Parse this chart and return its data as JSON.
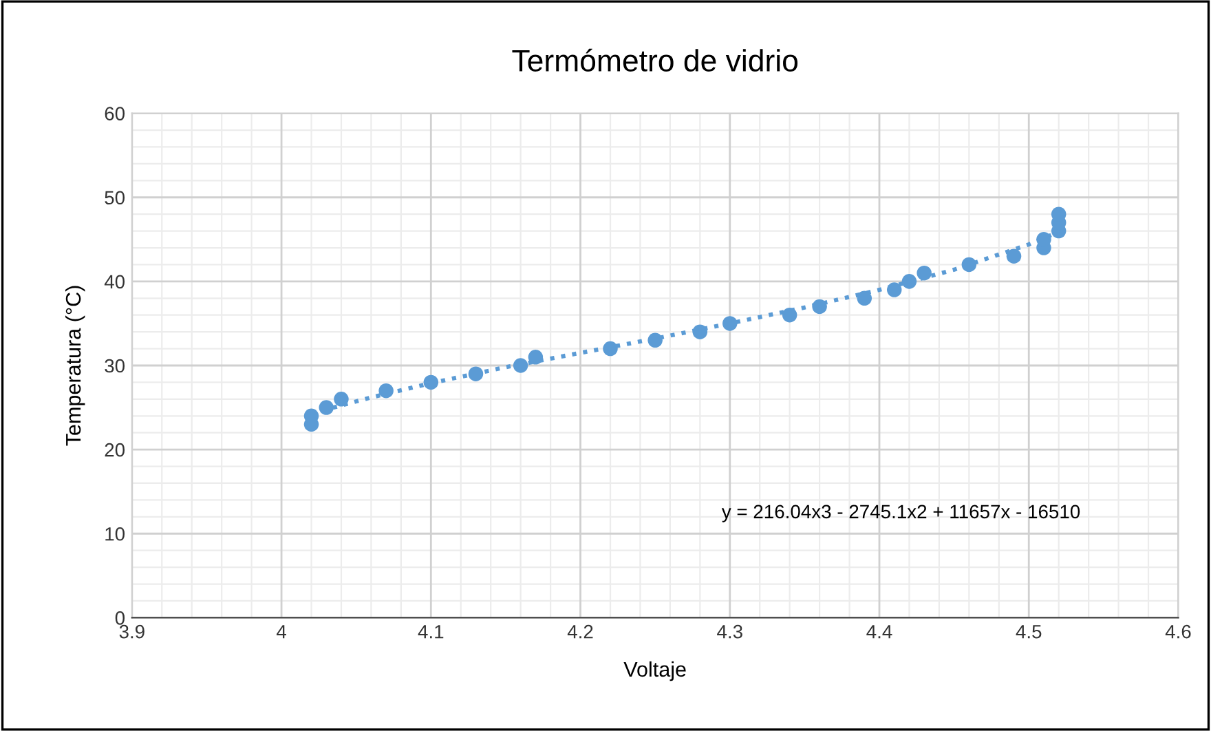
{
  "chart_data": {
    "type": "scatter",
    "title": "Termómetro de vidrio",
    "xlabel": "Voltaje",
    "ylabel": "Temperatura (°C)",
    "xlim": [
      3.9,
      4.6
    ],
    "xticks": [
      3.9,
      4,
      4.1,
      4.2,
      4.3,
      4.4,
      4.5,
      4.6
    ],
    "ylim": [
      0,
      60
    ],
    "yticks": [
      0,
      10,
      20,
      30,
      40,
      50,
      60
    ],
    "grid": true,
    "annotations": [
      "y = 216.04x3 - 2745.1x2 + 11657x - 16510"
    ],
    "series": [
      {
        "marker": "circle",
        "color": "#5b9bd5",
        "x": [
          4.02,
          4.02,
          4.03,
          4.04,
          4.07,
          4.1,
          4.13,
          4.16,
          4.17,
          4.22,
          4.25,
          4.28,
          4.3,
          4.34,
          4.36,
          4.39,
          4.41,
          4.42,
          4.43,
          4.46,
          4.49,
          4.51,
          4.51,
          4.52,
          4.52,
          4.52
        ],
        "values": [
          23,
          24,
          25,
          26,
          27,
          28,
          29,
          30,
          31,
          32,
          33,
          34,
          35,
          36,
          37,
          38,
          39,
          40,
          41,
          42,
          43,
          44,
          45,
          46,
          47,
          48
        ]
      },
      {
        "type": "line",
        "marker": "none",
        "color": "#5b9bd5",
        "line_style": "dotted",
        "x": [
          4.02,
          4.06,
          4.1,
          4.15,
          4.2,
          4.25,
          4.3,
          4.35,
          4.4,
          4.45,
          4.5,
          4.52
        ],
        "values": [
          24.3,
          26.2,
          27.9,
          29.8,
          31.5,
          33.2,
          35,
          36.9,
          39,
          41.4,
          44.4,
          45.9
        ]
      }
    ]
  }
}
